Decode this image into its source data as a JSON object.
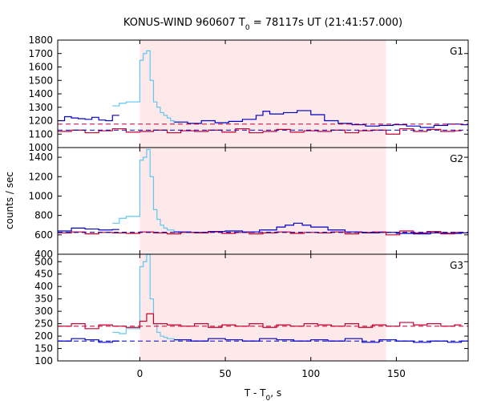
{
  "chart_data": {
    "type": "line",
    "title": "KONUS-WIND 960607 T",
    "title_sub": "0",
    "title_rest": " = 78117s UT (21:41:57.000)",
    "xlabel": "T - T",
    "xlabel_sub": "0",
    "xlabel_rest": ", s",
    "ylabel": "counts / sec",
    "xlim": [
      -48,
      192
    ],
    "xticks": [
      0,
      50,
      100,
      150
    ],
    "shaded_interval": [
      0,
      144
    ],
    "colors": {
      "shade": "#fde8ea",
      "g1_series": "#0000c8",
      "g1_background": "#c80030",
      "gap_series": "#5fc8f0",
      "background_fit": "#0000c8",
      "frame": "#000000"
    },
    "panels": [
      {
        "label": "G1",
        "ylim": [
          1000,
          1800
        ],
        "yticks": [
          1000,
          1100,
          1200,
          1300,
          1400,
          1500,
          1600,
          1700,
          1800
        ],
        "background_level": 1175,
        "fit_level": 1130,
        "series": [
          {
            "style": "data-blue",
            "x": [
              -48,
              -44,
              -40,
              -36,
              -32,
              -28,
              -24,
              -20,
              -16
            ],
            "values": [
              1200,
              1230,
              1220,
              1215,
              1210,
              1225,
              1205,
              1200,
              1240
            ]
          },
          {
            "style": "data-light",
            "x": [
              -16,
              -12,
              -8,
              0,
              2,
              4,
              6,
              8,
              10,
              12,
              14,
              16,
              18,
              20
            ],
            "values": [
              1310,
              1330,
              1340,
              1650,
              1700,
              1720,
              1500,
              1340,
              1300,
              1260,
              1240,
              1220,
              1200,
              1190
            ]
          },
          {
            "style": "data-blue",
            "x": [
              20,
              28,
              36,
              44,
              52,
              60,
              68,
              72,
              76,
              84,
              92,
              100,
              108,
              116,
              124,
              132,
              140,
              148,
              156,
              164,
              172,
              180,
              188
            ],
            "values": [
              1190,
              1180,
              1200,
              1185,
              1195,
              1210,
              1240,
              1270,
              1250,
              1260,
              1275,
              1245,
              1200,
              1180,
              1170,
              1160,
              1165,
              1170,
              1160,
              1150,
              1165,
              1175,
              1170
            ]
          },
          {
            "style": "data-red",
            "x": [
              -48,
              -40,
              -32,
              -24,
              -16,
              -8,
              0,
              8,
              16,
              24,
              32,
              40,
              48,
              56,
              64,
              72,
              80,
              88,
              96,
              104,
              112,
              120,
              128,
              136,
              144,
              152,
              160,
              168,
              176,
              184
            ],
            "values": [
              1120,
              1130,
              1110,
              1125,
              1140,
              1115,
              1120,
              1130,
              1110,
              1125,
              1120,
              1130,
              1115,
              1140,
              1110,
              1120,
              1135,
              1115,
              1125,
              1120,
              1130,
              1110,
              1125,
              1130,
              1100,
              1140,
              1120,
              1135,
              1120,
              1125
            ]
          }
        ]
      },
      {
        "label": "G2",
        "ylim": [
          400,
          1500
        ],
        "yticks": [
          400,
          600,
          800,
          1000,
          1200,
          1400
        ],
        "background_level": 625,
        "fit_level": 625,
        "series": [
          {
            "style": "data-blue",
            "x": [
              -48,
              -40,
              -32,
              -24,
              -16
            ],
            "values": [
              640,
              670,
              660,
              650,
              655
            ]
          },
          {
            "style": "data-light",
            "x": [
              -16,
              -12,
              -8,
              0,
              2,
              4,
              6,
              8,
              10,
              12,
              14,
              16,
              20
            ],
            "values": [
              720,
              770,
              790,
              1370,
              1400,
              1480,
              1200,
              860,
              760,
              700,
              670,
              650,
              630
            ]
          },
          {
            "style": "data-blue",
            "x": [
              20,
              30,
              40,
              50,
              60,
              70,
              80,
              85,
              90,
              95,
              100,
              110,
              120,
              130,
              140,
              150,
              160,
              170,
              180,
              188
            ],
            "values": [
              630,
              625,
              635,
              640,
              630,
              650,
              680,
              700,
              720,
              700,
              680,
              650,
              630,
              620,
              625,
              615,
              610,
              620,
              615,
              620
            ]
          },
          {
            "style": "data-red",
            "x": [
              -48,
              -40,
              -32,
              -24,
              -16,
              -8,
              0,
              8,
              16,
              24,
              32,
              40,
              48,
              56,
              64,
              72,
              80,
              88,
              96,
              104,
              112,
              120,
              128,
              136,
              144,
              152,
              160,
              168,
              176,
              184
            ],
            "values": [
              620,
              630,
              610,
              625,
              620,
              615,
              630,
              620,
              610,
              625,
              620,
              630,
              615,
              625,
              610,
              620,
              630,
              615,
              625,
              620,
              630,
              610,
              625,
              630,
              600,
              640,
              620,
              635,
              610,
              625
            ]
          }
        ]
      },
      {
        "label": "G3",
        "ylim": [
          100,
          530
        ],
        "yticks": [
          100,
          150,
          200,
          250,
          300,
          350,
          400,
          450,
          500
        ],
        "background_level": 240,
        "fit_level": 180,
        "series": [
          {
            "style": "data-blue",
            "x": [
              -48,
              -40,
              -32,
              -24,
              -16
            ],
            "values": [
              180,
              190,
              185,
              175,
              180
            ]
          },
          {
            "style": "data-light",
            "x": [
              -16,
              -12,
              -8,
              0,
              2,
              4,
              6,
              8,
              10,
              12,
              14,
              16,
              20
            ],
            "values": [
              215,
              210,
              230,
              480,
              500,
              530,
              350,
              250,
              215,
              200,
              195,
              190,
              185
            ]
          },
          {
            "style": "data-blue",
            "x": [
              20,
              30,
              40,
              50,
              60,
              70,
              80,
              90,
              100,
              110,
              120,
              130,
              140,
              150,
              160,
              170,
              180,
              188
            ],
            "values": [
              185,
              180,
              190,
              185,
              180,
              190,
              185,
              180,
              185,
              180,
              190,
              175,
              185,
              180,
              175,
              180,
              175,
              180
            ]
          },
          {
            "style": "data-red",
            "x": [
              -48,
              -40,
              -32,
              -24,
              -16,
              -8,
              0,
              4,
              8,
              16,
              24,
              32,
              40,
              48,
              56,
              64,
              72,
              80,
              88,
              96,
              104,
              112,
              120,
              128,
              136,
              144,
              152,
              160,
              168,
              176,
              184
            ],
            "values": [
              240,
              250,
              230,
              245,
              240,
              235,
              260,
              290,
              250,
              245,
              240,
              250,
              235,
              245,
              240,
              250,
              235,
              245,
              240,
              250,
              245,
              240,
              250,
              235,
              245,
              240,
              255,
              245,
              250,
              240,
              245
            ]
          }
        ]
      }
    ]
  }
}
